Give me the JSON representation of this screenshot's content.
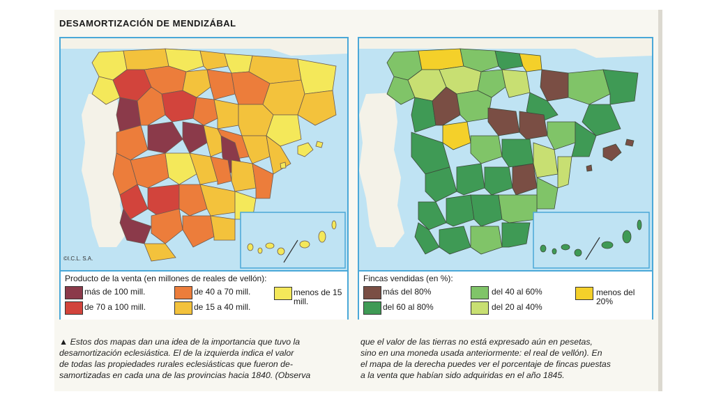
{
  "title": "DESAMORTIZACIÓN DE MENDIZÁBAL",
  "copyright": "©I.C.L. S.A.",
  "left_map": {
    "legend_title": "Producto de la venta (en millones de reales de vellón):",
    "legend": [
      {
        "label": "más de 100 mill.",
        "color": "#8b3a4a"
      },
      {
        "label": "de 70 a 100 mill.",
        "color": "#d2443c"
      },
      {
        "label": "de 40 a 70 mill.",
        "color": "#ec7d3b"
      },
      {
        "label": "de 15 a 40 mill.",
        "color": "#f3c23c"
      },
      {
        "label": "menos de 15 mill.",
        "color": "#f4e85a"
      }
    ]
  },
  "right_map": {
    "legend_title": "Fincas vendidas (en %):",
    "legend": [
      {
        "label": "más del 80%",
        "color": "#7a4e44"
      },
      {
        "label": "del 60 al 80%",
        "color": "#3f9a55"
      },
      {
        "label": "del 40 al 60%",
        "color": "#80c468"
      },
      {
        "label": "del 20 al 40%",
        "color": "#c8df72"
      },
      {
        "label": "menos del 20%",
        "color": "#f4d02a"
      }
    ]
  },
  "caption": {
    "marker": "▲",
    "left_lines": [
      "Estos dos mapas dan una idea de la importancia que tuvo la",
      "desamortización eclesiástica. El de la izquierda indica el valor",
      "de todas las propiedades rurales eclesiásticas que fueron de-",
      "samortizadas en cada una de las provincias hacia 1840. (Observa"
    ],
    "right_lines": [
      "que el valor de las tierras no está expresado aún en pesetas,",
      "sino en una moneda usada anteriormente: el real de vellón). En",
      "el mapa de la derecha puedes ver el porcentaje de fincas puestas",
      "a la venta que habían sido adquiridas en el año 1845."
    ]
  }
}
